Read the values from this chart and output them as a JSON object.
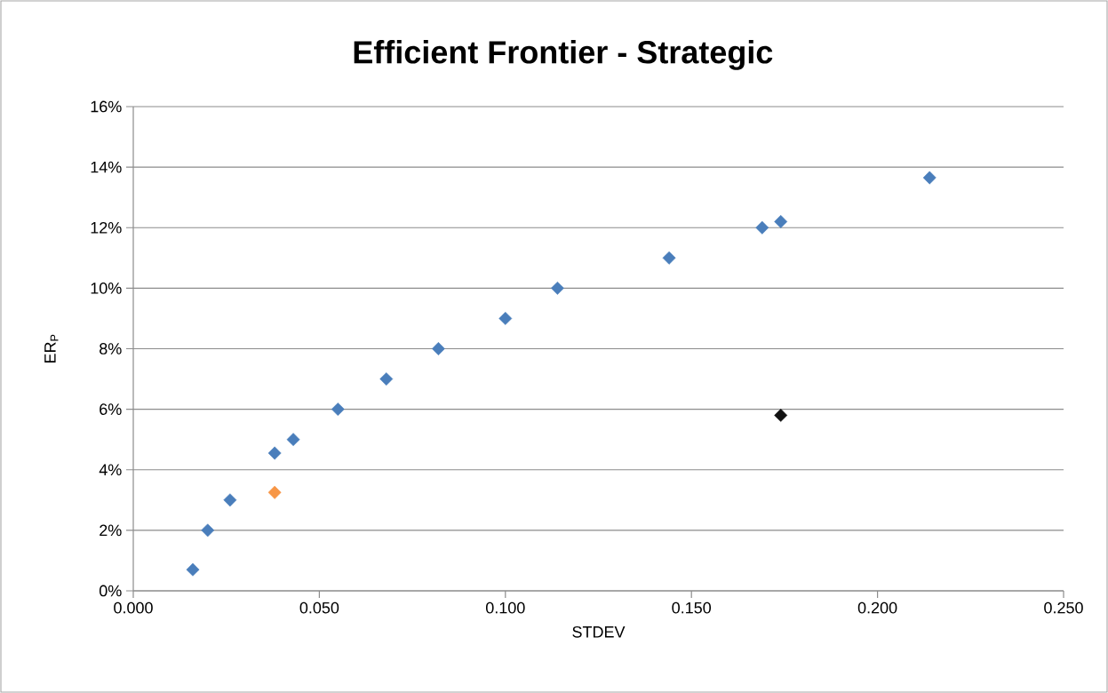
{
  "chart_data": {
    "type": "scatter",
    "title": "Efficient Frontier - Strategic",
    "xlabel": "STDEV",
    "ylabel": "ER$_{P}$",
    "xlim": [
      0,
      0.25
    ],
    "xticks": [
      {
        "value": 0,
        "label": "0.000"
      },
      {
        "value": 0.05,
        "label": "0.050"
      },
      {
        "value": 0.1,
        "label": "0.100"
      },
      {
        "value": 0.15,
        "label": "0.150"
      },
      {
        "value": 0.2,
        "label": "0.200"
      },
      {
        "value": 0.25,
        "label": "0.250"
      }
    ],
    "ylim": [
      0,
      16
    ],
    "yticks": [
      {
        "value": 0,
        "label": "0%"
      },
      {
        "value": 2,
        "label": "2%"
      },
      {
        "value": 4,
        "label": "4%"
      },
      {
        "value": 6,
        "label": "6%"
      },
      {
        "value": 8,
        "label": "8%"
      },
      {
        "value": 10,
        "label": "10%"
      },
      {
        "value": 12,
        "label": "12%"
      },
      {
        "value": 14,
        "label": "14%"
      },
      {
        "value": 16,
        "label": "16%"
      }
    ],
    "grid": "y",
    "marker": "diamond",
    "series": [
      {
        "color": "#4a7ebb",
        "x": [
          0.016,
          0.02,
          0.026,
          0.038,
          0.043,
          0.055,
          0.068,
          0.082,
          0.1,
          0.114,
          0.144,
          0.169,
          0.174,
          0.214
        ],
        "values": [
          0.7,
          2.0,
          3.0,
          4.55,
          5.0,
          6.0,
          7.0,
          8.0,
          9.0,
          10.0,
          11.0,
          12.0,
          12.2,
          13.65
        ]
      },
      {
        "color": "#f79646",
        "x": [
          0.038
        ],
        "values": [
          3.25
        ]
      },
      {
        "color": "#111111",
        "x": [
          0.174
        ],
        "values": [
          5.8
        ]
      }
    ]
  }
}
